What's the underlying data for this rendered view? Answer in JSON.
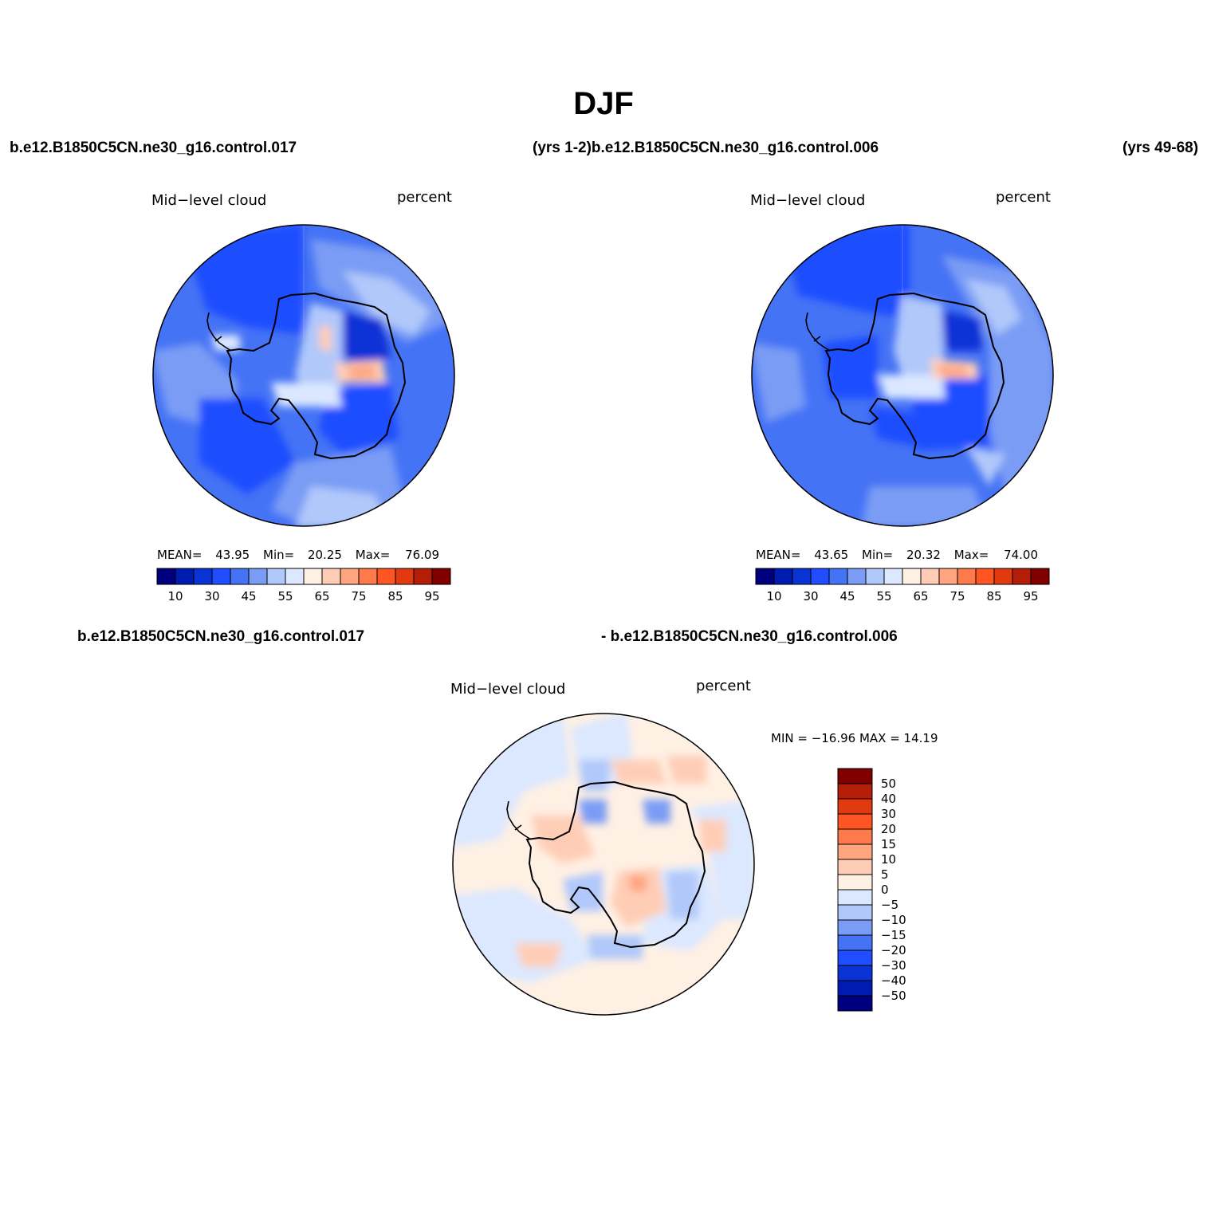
{
  "title": "DJF",
  "case_titles": {
    "top_left": "b.e12.B1850C5CN.ne30_g16.control.017",
    "top_middle": "(yrs 1-2)b.e12.B1850C5CN.ne30_g16.control.006",
    "top_right": "(yrs 49-68)",
    "bottom_left": "b.e12.B1850C5CN.ne30_g16.control.017",
    "bottom_right": "- b.e12.B1850C5CN.ne30_g16.control.006"
  },
  "panels": [
    {
      "variable": "Mid−level cloud",
      "units": "percent",
      "stats": {
        "mean_label": "MEAN=",
        "mean": "43.95",
        "min_label": "Min=",
        "min": "20.25",
        "max_label": "Max=",
        "max": "76.09"
      }
    },
    {
      "variable": "Mid−level cloud",
      "units": "percent",
      "stats": {
        "mean_label": "MEAN=",
        "mean": "43.65",
        "min_label": "Min=",
        "min": "20.32",
        "max_label": "Max=",
        "max": "74.00"
      }
    },
    {
      "variable": "Mid−level cloud",
      "units": "percent",
      "stats_text": "MIN = −16.96 MAX =   14.19"
    }
  ],
  "abs_colorbar": {
    "colors": [
      "#00007f",
      "#001bb0",
      "#0a33d6",
      "#1f4dff",
      "#4573f5",
      "#7a9cf5",
      "#b0c8fa",
      "#dbe8ff",
      "#fff0e4",
      "#ffcdb6",
      "#ffa580",
      "#ff7a4a",
      "#ff5522",
      "#e23a10",
      "#b41e08",
      "#800000"
    ],
    "labels": [
      "10",
      "30",
      "45",
      "55",
      "65",
      "75",
      "85",
      "95"
    ]
  },
  "diff_colorbar": {
    "colors": [
      "#800000",
      "#b41e08",
      "#e23a10",
      "#ff5522",
      "#ff7a4a",
      "#ffa580",
      "#ffcdb6",
      "#fff0e4",
      "#dbe8ff",
      "#b0c8fa",
      "#7a9cf5",
      "#4573f5",
      "#1f4dff",
      "#0a33d6",
      "#001bb0",
      "#00007f"
    ],
    "labels": [
      "50",
      "40",
      "30",
      "20",
      "15",
      "10",
      "5",
      "0",
      "−5",
      "−10",
      "−15",
      "−20",
      "−30",
      "−40",
      "−50"
    ]
  }
}
